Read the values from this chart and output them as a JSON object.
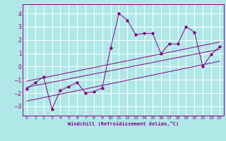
{
  "xlabel": "Windchill (Refroidissement éolien,°C)",
  "background_color": "#b0e8e8",
  "grid_color": "#ffffff",
  "line_color": "#880088",
  "x_data": [
    0,
    1,
    2,
    3,
    4,
    5,
    6,
    7,
    8,
    9,
    10,
    11,
    12,
    13,
    14,
    15,
    16,
    17,
    18,
    19,
    20,
    21,
    22,
    23
  ],
  "y_data": [
    -1.7,
    -1.2,
    -0.8,
    -3.2,
    -1.8,
    -1.5,
    -1.2,
    -2.0,
    -1.9,
    -1.6,
    1.4,
    4.0,
    3.5,
    2.4,
    2.5,
    2.5,
    1.0,
    1.7,
    1.7,
    3.0,
    2.6,
    0.0,
    0.9,
    1.5
  ],
  "reg_line1_y": [
    -1.55,
    1.3
  ],
  "reg_line2_y": [
    -1.1,
    1.85
  ],
  "reg_line3_y": [
    -2.6,
    0.4
  ],
  "xlim": [
    -0.5,
    23.5
  ],
  "ylim": [
    -3.7,
    4.7
  ],
  "yticks": [
    -3,
    -2,
    -1,
    0,
    1,
    2,
    3,
    4
  ],
  "xticks": [
    0,
    1,
    2,
    3,
    4,
    5,
    6,
    7,
    8,
    9,
    10,
    11,
    12,
    13,
    14,
    15,
    16,
    17,
    18,
    19,
    20,
    21,
    22,
    23
  ]
}
